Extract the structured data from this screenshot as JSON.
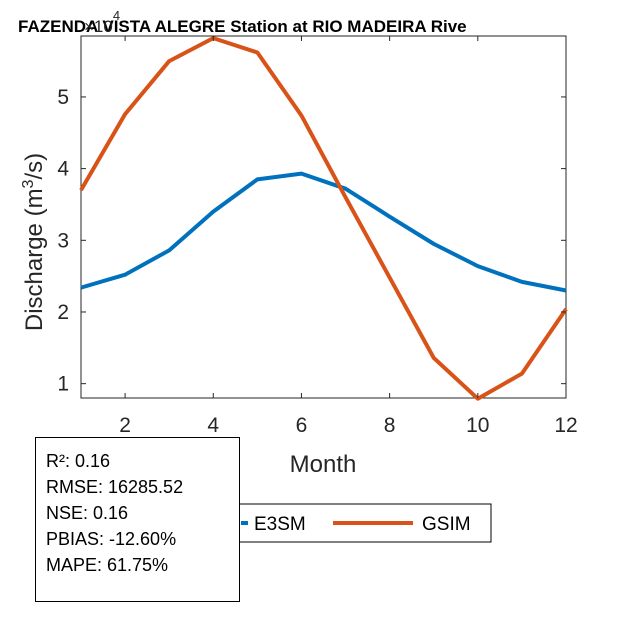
{
  "chart_data": {
    "type": "line",
    "title": "FAZENDA VISTA ALEGRE  Station at  RIO MADEIRA  Rive",
    "xlabel": "Month",
    "ylabel": "Discharge (m",
    "ylabel_sup": "3",
    "ylabel_end": "/s)",
    "y_exponent_base": "×10",
    "y_exponent_power": "4",
    "xlim": [
      1,
      12
    ],
    "ylim": [
      0.8,
      5.85
    ],
    "x_ticks": [
      2,
      4,
      6,
      8,
      10,
      12
    ],
    "y_ticks": [
      1,
      2,
      3,
      4,
      5
    ],
    "x": [
      1,
      2,
      3,
      4,
      5,
      6,
      7,
      8,
      9,
      10,
      11,
      12
    ],
    "series": [
      {
        "name": "E3SM",
        "color": "#0072BD",
        "values": [
          2.34,
          2.52,
          2.86,
          3.4,
          3.85,
          3.93,
          3.72,
          3.33,
          2.95,
          2.64,
          2.42,
          2.3
        ]
      },
      {
        "name": "GSIM",
        "color": "#D95319",
        "values": [
          3.7,
          4.76,
          5.5,
          5.82,
          5.62,
          4.74,
          3.6,
          2.48,
          1.36,
          0.79,
          1.14,
          2.04
        ]
      }
    ]
  },
  "stats": {
    "r2": "R²: 0.16",
    "rmse": "RMSE: 16285.52",
    "nse": "NSE: 0.16",
    "pbias": "PBIAS: -12.60%",
    "mape": "MAPE: 61.75%"
  }
}
